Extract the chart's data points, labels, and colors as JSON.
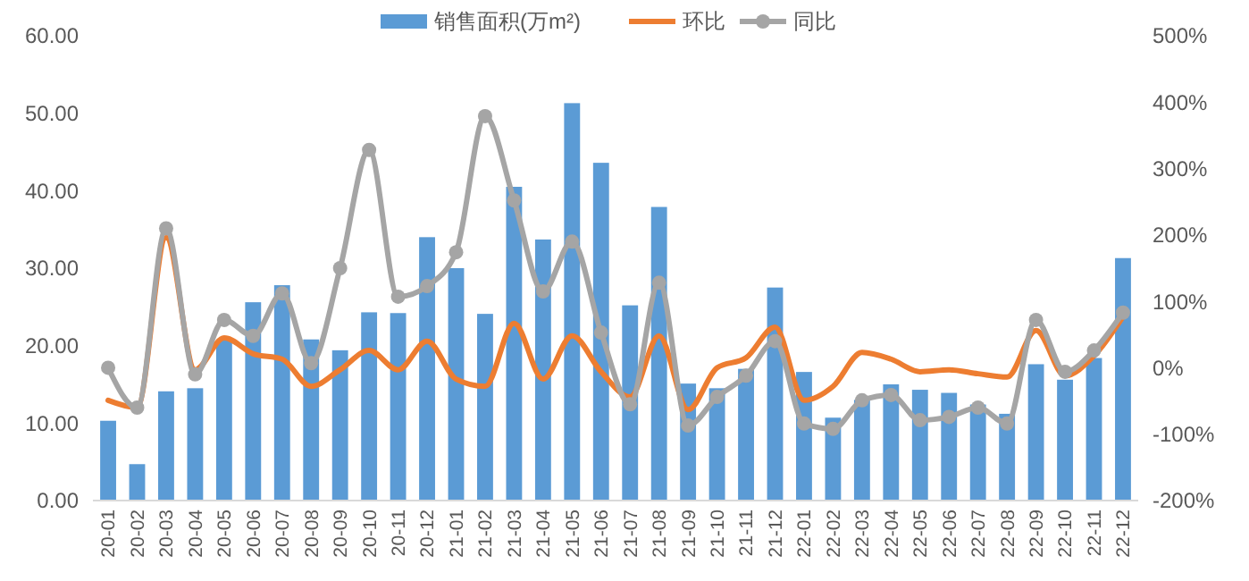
{
  "chart_data": {
    "type": "bar",
    "categories": [
      "20-01",
      "20-02",
      "20-03",
      "20-04",
      "20-05",
      "20-06",
      "20-07",
      "20-08",
      "20-09",
      "20-10",
      "20-11",
      "20-12",
      "21-01",
      "21-02",
      "21-03",
      "21-04",
      "21-05",
      "21-06",
      "21-07",
      "21-08",
      "21-09",
      "21-10",
      "21-11",
      "21-12",
      "22-01",
      "22-02",
      "22-03",
      "22-04",
      "22-05",
      "22-06",
      "22-07",
      "22-08",
      "22-09",
      "22-10",
      "22-11",
      "22-12"
    ],
    "series": [
      {
        "name": "销售面积(万m²)",
        "color": "#5b9bd5",
        "values": [
          10.3,
          4.7,
          14.1,
          14.5,
          20.8,
          25.6,
          27.8,
          20.8,
          19.4,
          24.3,
          24.2,
          34.0,
          30.0,
          24.1,
          40.5,
          33.7,
          51.3,
          43.6,
          25.2,
          37.9,
          15.1,
          14.5,
          17.0,
          27.5,
          16.6,
          10.7,
          13.0,
          15.0,
          14.3,
          13.9,
          12.4,
          11.2,
          17.6,
          15.6,
          18.4,
          31.3
        ]
      },
      {
        "name": "环比",
        "type": "line",
        "axis": "y2",
        "color": "#ed7d31",
        "marker": "none",
        "values": [
          -49,
          -60,
          196,
          -3,
          45,
          21,
          13,
          -28,
          -3,
          26,
          -3,
          40,
          -17,
          -28,
          67,
          -17,
          48,
          -6,
          -44,
          48,
          -63,
          0,
          15,
          61,
          -49,
          -28,
          23,
          13,
          -6,
          -3,
          -9,
          -14,
          56,
          -12,
          18,
          77
        ]
      },
      {
        "name": "同比",
        "type": "line",
        "axis": "y2",
        "color": "#a5a5a5",
        "marker": "circle",
        "values": [
          0,
          -60,
          210,
          -10,
          72,
          48,
          112,
          7,
          150,
          328,
          107,
          123,
          174,
          379,
          252,
          115,
          190,
          53,
          -55,
          128,
          -87,
          -44,
          -12,
          40,
          -84,
          -92,
          -49,
          -41,
          -79,
          -74,
          -60,
          -84,
          72,
          -6,
          26,
          83
        ]
      }
    ],
    "ylim": [
      0,
      60
    ],
    "yticks": [
      {
        "value": 0,
        "label": "0.00"
      },
      {
        "value": 10,
        "label": "10.00"
      },
      {
        "value": 20,
        "label": "20.00"
      },
      {
        "value": 30,
        "label": "30.00"
      },
      {
        "value": 40,
        "label": "40.00"
      },
      {
        "value": 50,
        "label": "50.00"
      },
      {
        "value": 60,
        "label": "60.00"
      }
    ],
    "y2lim": [
      -200,
      500
    ],
    "y2ticks": [
      {
        "value": -200,
        "label": "-200%"
      },
      {
        "value": -100,
        "label": "-100%"
      },
      {
        "value": 0,
        "label": "0%"
      },
      {
        "value": 100,
        "label": "100%"
      },
      {
        "value": 200,
        "label": "200%"
      },
      {
        "value": 300,
        "label": "300%"
      },
      {
        "value": 400,
        "label": "400%"
      },
      {
        "value": 500,
        "label": "500%"
      }
    ],
    "grid": false,
    "legend": "top"
  }
}
